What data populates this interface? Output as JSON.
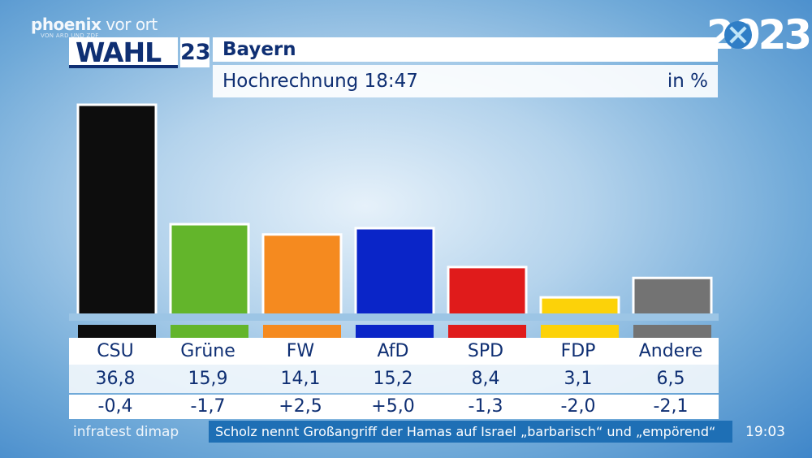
{
  "branding": {
    "channel_bold": "phoenix",
    "channel_thin": " vor ort",
    "channel_sub": "VON ARD UND ZDF",
    "wahl": "WAHL",
    "wahl_num": "23",
    "year": "2023"
  },
  "header": {
    "title": "Bayern",
    "subtitle": "Hochrechnung 18:47",
    "unit": "in %"
  },
  "chart_data": {
    "type": "bar",
    "categories": [
      "CSU",
      "Grüne",
      "FW",
      "AfD",
      "SPD",
      "FDP",
      "Andere"
    ],
    "values": [
      36.8,
      15.9,
      14.1,
      15.2,
      8.4,
      3.1,
      6.5
    ],
    "value_labels": [
      "36,8",
      "15,9",
      "14,1",
      "15,2",
      "8,4",
      "3,1",
      "6,5"
    ],
    "changes": [
      -0.4,
      -1.7,
      2.5,
      5.0,
      -1.3,
      -2.0,
      -2.1
    ],
    "change_labels": [
      "-0,4",
      "-1,7",
      "+2,5",
      "+5,0",
      "-1,3",
      "-2,0",
      "-2,1"
    ],
    "colors": [
      "#0d0d0d",
      "#63b52b",
      "#f58a1f",
      "#0a25c8",
      "#e01b1b",
      "#fcd209",
      "#737373"
    ],
    "title": "Bayern",
    "subtitle": "Hochrechnung 18:47",
    "ylabel": "in %",
    "ylim": [
      0,
      36.8
    ],
    "grid": false,
    "legend": "none"
  },
  "footer": {
    "source": "infratest dimap",
    "ticker": "Scholz nennt Großangriff der Hamas auf Israel „barbarisch“ und „empörend“",
    "clock": "19:03"
  }
}
